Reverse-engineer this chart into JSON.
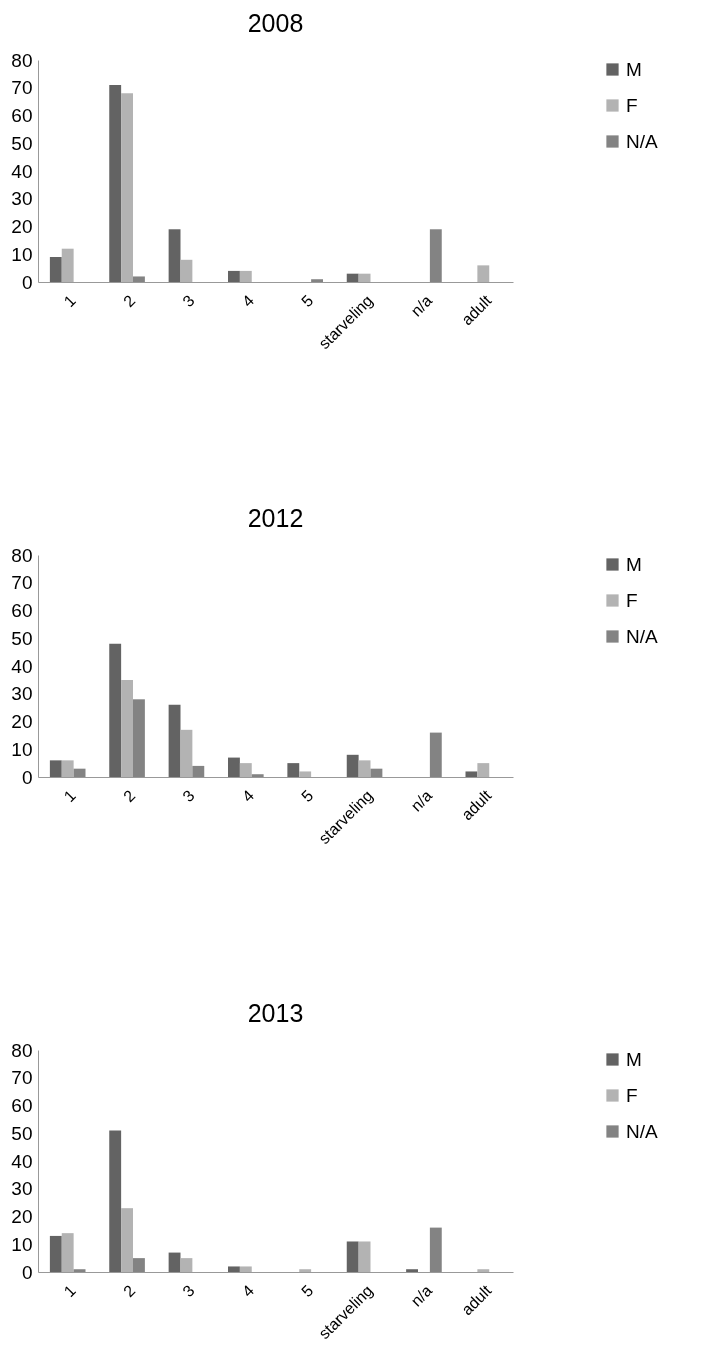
{
  "chart_data": [
    {
      "type": "bar",
      "title": "2008",
      "categories": [
        "1",
        "2",
        "3",
        "4",
        "5",
        "starveling",
        "n/a",
        "adult"
      ],
      "ylim": [
        0,
        80
      ],
      "yticks": [
        0,
        10,
        20,
        30,
        40,
        50,
        60,
        70,
        80
      ],
      "grid": false,
      "legend": "right",
      "series": [
        {
          "name": "M",
          "color": "#636363",
          "values": [
            9,
            71,
            19,
            4,
            0,
            3,
            0,
            0
          ]
        },
        {
          "name": "F",
          "color": "#b3b3b3",
          "values": [
            12,
            68,
            8,
            4,
            0,
            3,
            0,
            6
          ]
        },
        {
          "name": "N/A",
          "color": "#838383",
          "values": [
            0,
            2,
            0,
            0,
            1,
            0,
            19,
            0
          ]
        }
      ]
    },
    {
      "type": "bar",
      "title": "2012",
      "categories": [
        "1",
        "2",
        "3",
        "4",
        "5",
        "starveling",
        "n/a",
        "adult"
      ],
      "ylim": [
        0,
        80
      ],
      "yticks": [
        0,
        10,
        20,
        30,
        40,
        50,
        60,
        70,
        80
      ],
      "grid": false,
      "legend": "right",
      "series": [
        {
          "name": "M",
          "color": "#636363",
          "values": [
            6,
            48,
            26,
            7,
            5,
            8,
            0,
            2
          ]
        },
        {
          "name": "F",
          "color": "#b3b3b3",
          "values": [
            6,
            35,
            17,
            5,
            2,
            6,
            0,
            5
          ]
        },
        {
          "name": "N/A",
          "color": "#838383",
          "values": [
            3,
            28,
            4,
            1,
            0,
            3,
            16,
            0
          ]
        }
      ]
    },
    {
      "type": "bar",
      "title": "2013",
      "categories": [
        "1",
        "2",
        "3",
        "4",
        "5",
        "starveling",
        "n/a",
        "adult"
      ],
      "ylim": [
        0,
        80
      ],
      "yticks": [
        0,
        10,
        20,
        30,
        40,
        50,
        60,
        70,
        80
      ],
      "grid": false,
      "legend": "right",
      "series": [
        {
          "name": "M",
          "color": "#636363",
          "values": [
            13,
            51,
            7,
            2,
            0,
            11,
            1,
            0
          ]
        },
        {
          "name": "F",
          "color": "#b3b3b3",
          "values": [
            14,
            23,
            5,
            2,
            1,
            11,
            0,
            1
          ]
        },
        {
          "name": "N/A",
          "color": "#838383",
          "values": [
            1,
            5,
            0,
            0,
            0,
            0,
            16,
            0
          ]
        }
      ]
    }
  ]
}
